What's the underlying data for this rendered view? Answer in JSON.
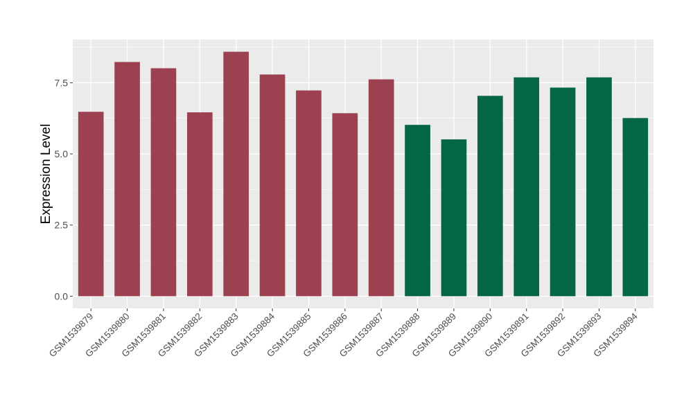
{
  "chart_data": {
    "type": "bar",
    "title": "",
    "xlabel": "",
    "ylabel": "Expression Level",
    "ylim": [
      -0.43,
      9.02
    ],
    "yticks": [
      0,
      2.5,
      5,
      7.5
    ],
    "ytick_labels": [
      "0.0",
      "2.5",
      "5.0",
      "7.5"
    ],
    "grid": true,
    "legend": "none",
    "categories": [
      "GSM1539879",
      "GSM1539880",
      "GSM1539881",
      "GSM1539882",
      "GSM1539883",
      "GSM1539884",
      "GSM1539885",
      "GSM1539886",
      "GSM1539887",
      "GSM1539888",
      "GSM1539889",
      "GSM1539890",
      "GSM1539891",
      "GSM1539892",
      "GSM1539893",
      "GSM1539894"
    ],
    "values": [
      6.48,
      8.23,
      8.01,
      6.46,
      8.59,
      7.79,
      7.23,
      6.43,
      7.62,
      6.02,
      5.51,
      7.04,
      7.69,
      7.33,
      7.69,
      6.26
    ],
    "groups": [
      0,
      0,
      0,
      0,
      0,
      0,
      0,
      0,
      0,
      1,
      1,
      1,
      1,
      1,
      1,
      1
    ],
    "group_colors": [
      "#9b4150",
      "#036645"
    ]
  }
}
